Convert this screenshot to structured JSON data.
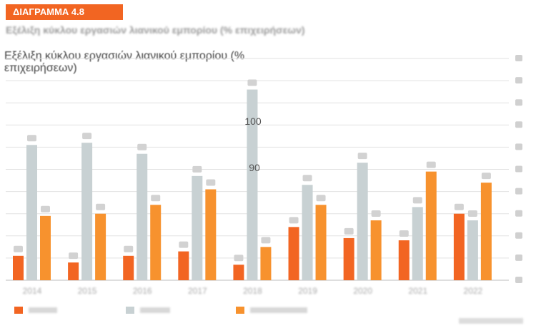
{
  "header": {
    "badge": "ΔΙΑΓΡΑΜΜΑ 4.8"
  },
  "chart_data": {
    "type": "bar",
    "title": "Εξέλιξη κύκλου εργασιών λιανικού εμπορίου (% επιχειρήσεων)",
    "categories": [
      "2014",
      "2015",
      "2016",
      "2017",
      "2018",
      "2019",
      "2020",
      "2021",
      "2022"
    ],
    "series": [
      {
        "color": "#f26522",
        "values": [
          11,
          8,
          11,
          13,
          7,
          24,
          19,
          18,
          30
        ]
      },
      {
        "color": "#c8d1d3",
        "values": [
          61,
          62,
          57,
          47,
          86,
          43,
          53,
          33,
          27
        ]
      },
      {
        "color": "#f7922e",
        "values": [
          29,
          30,
          34,
          41,
          15,
          34,
          27,
          49,
          44
        ]
      }
    ],
    "visible_axis_labels": [
      "100",
      "90"
    ],
    "ylim": [
      0,
      100
    ],
    "grid": true,
    "legend": "bottom-left"
  }
}
